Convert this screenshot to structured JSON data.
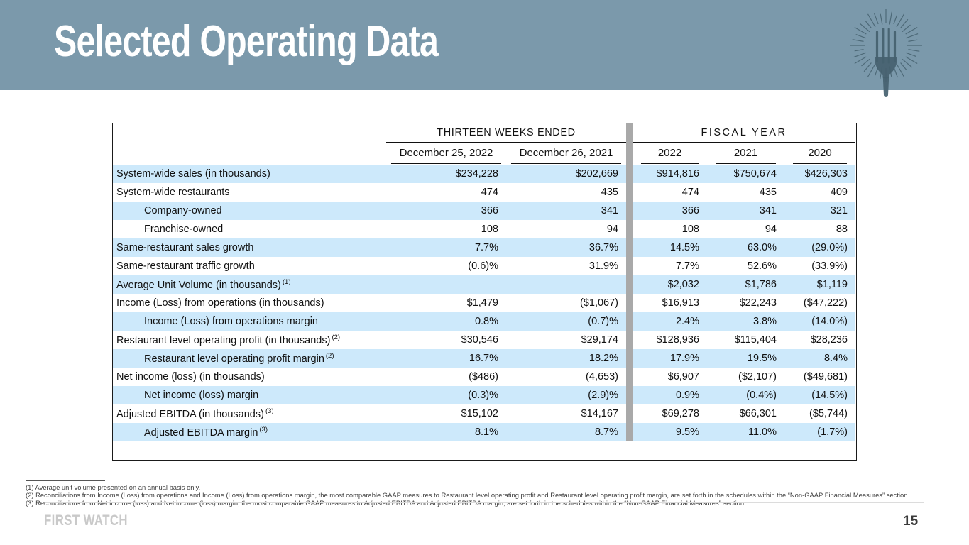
{
  "slide": {
    "title": "Selected Operating Data",
    "brand": "FIRST WATCH",
    "page_number": "15"
  },
  "colors": {
    "header_band": "#7b99ab",
    "row_stripe": "#cde9fb",
    "divider_bar": "#a9a9a9",
    "title_text": "#ffffff"
  },
  "logo": {
    "icon": "fork-sunburst-icon"
  },
  "table": {
    "group_headers": [
      {
        "label": "THIRTEEN WEEKS ENDED",
        "span": 2
      },
      {
        "label": "FISCAL YEAR",
        "span": 3
      }
    ],
    "columns": [
      "December 25, 2022",
      "December 26, 2021",
      "2022",
      "2021",
      "2020"
    ],
    "rows": [
      {
        "label": "System-wide sales (in thousands)",
        "sup": "",
        "indent": false,
        "shaded": true,
        "values": [
          "$234,228",
          "$202,669",
          "$914,816",
          "$750,674",
          "$426,303"
        ]
      },
      {
        "label": "System-wide restaurants",
        "sup": "",
        "indent": false,
        "shaded": false,
        "values": [
          "474",
          "435",
          "474",
          "435",
          "409"
        ]
      },
      {
        "label": "Company-owned",
        "sup": "",
        "indent": true,
        "shaded": true,
        "values": [
          "366",
          "341",
          "366",
          "341",
          "321"
        ]
      },
      {
        "label": "Franchise-owned",
        "sup": "",
        "indent": true,
        "shaded": false,
        "values": [
          "108",
          "94",
          "108",
          "94",
          "88"
        ]
      },
      {
        "label": "Same-restaurant sales growth",
        "sup": "",
        "indent": false,
        "shaded": true,
        "values": [
          "7.7%",
          "36.7%",
          "14.5%",
          "63.0%",
          "(29.0%)"
        ]
      },
      {
        "label": "Same-restaurant traffic growth",
        "sup": "",
        "indent": false,
        "shaded": false,
        "values": [
          "(0.6)%",
          "31.9%",
          "7.7%",
          "52.6%",
          "(33.9%)"
        ]
      },
      {
        "label": "Average Unit Volume (in thousands)",
        "sup": "(1)",
        "indent": false,
        "shaded": true,
        "values": [
          "",
          "",
          "$2,032",
          "$1,786",
          "$1,119"
        ]
      },
      {
        "label": "Income (Loss) from operations (in thousands)",
        "sup": "",
        "indent": false,
        "shaded": false,
        "values": [
          "$1,479",
          "($1,067)",
          "$16,913",
          "$22,243",
          "($47,222)"
        ]
      },
      {
        "label": "Income (Loss) from operations margin",
        "sup": "",
        "indent": true,
        "shaded": true,
        "values": [
          "0.8%",
          "(0.7)%",
          "2.4%",
          "3.8%",
          "(14.0%)"
        ]
      },
      {
        "label": "Restaurant level operating profit (in thousands)",
        "sup": "(2)",
        "indent": false,
        "shaded": false,
        "values": [
          "$30,546",
          "$29,174",
          "$128,936",
          "$115,404",
          "$28,236"
        ]
      },
      {
        "label": "Restaurant level operating profit margin",
        "sup": "(2)",
        "indent": true,
        "shaded": true,
        "values": [
          "16.7%",
          "18.2%",
          "17.9%",
          "19.5%",
          "8.4%"
        ]
      },
      {
        "label": "Net income (loss) (in thousands)",
        "sup": "",
        "indent": false,
        "shaded": false,
        "values": [
          "($486)",
          "(4,653)",
          "$6,907",
          "($2,107)",
          "($49,681)"
        ]
      },
      {
        "label": "Net income (loss) margin",
        "sup": "",
        "indent": true,
        "shaded": true,
        "values": [
          "(0.3)%",
          "(2.9)%",
          "0.9%",
          "(0.4%)",
          "(14.5%)"
        ]
      },
      {
        "label": "Adjusted EBITDA (in thousands)",
        "sup": "(3)",
        "indent": false,
        "shaded": false,
        "values": [
          "$15,102",
          "$14,167",
          "$69,278",
          "$66,301",
          "($5,744)"
        ]
      },
      {
        "label": "Adjusted EBITDA margin",
        "sup": "(3)",
        "indent": true,
        "shaded": true,
        "values": [
          "8.1%",
          "8.7%",
          "9.5%",
          "11.0%",
          "(1.7%)"
        ]
      }
    ]
  },
  "footnotes": [
    "(1) Average unit volume presented on an annual basis only.",
    "(2) Reconciliations from Income (Loss) from operations and Income (Loss) from operations margin, the most comparable GAAP measures to Restaurant level operating profit and Restaurant level operating profit margin, are set forth in the schedules within the “Non-GAAP Financial Measures” section.",
    "(3) Reconciliations from Net income (loss) and Net income (loss) margin, the most comparable GAAP measures to Adjusted EBITDA and Adjusted EBITDA margin, are set forth in the schedules within the “Non-GAAP Financial Measures” section."
  ]
}
